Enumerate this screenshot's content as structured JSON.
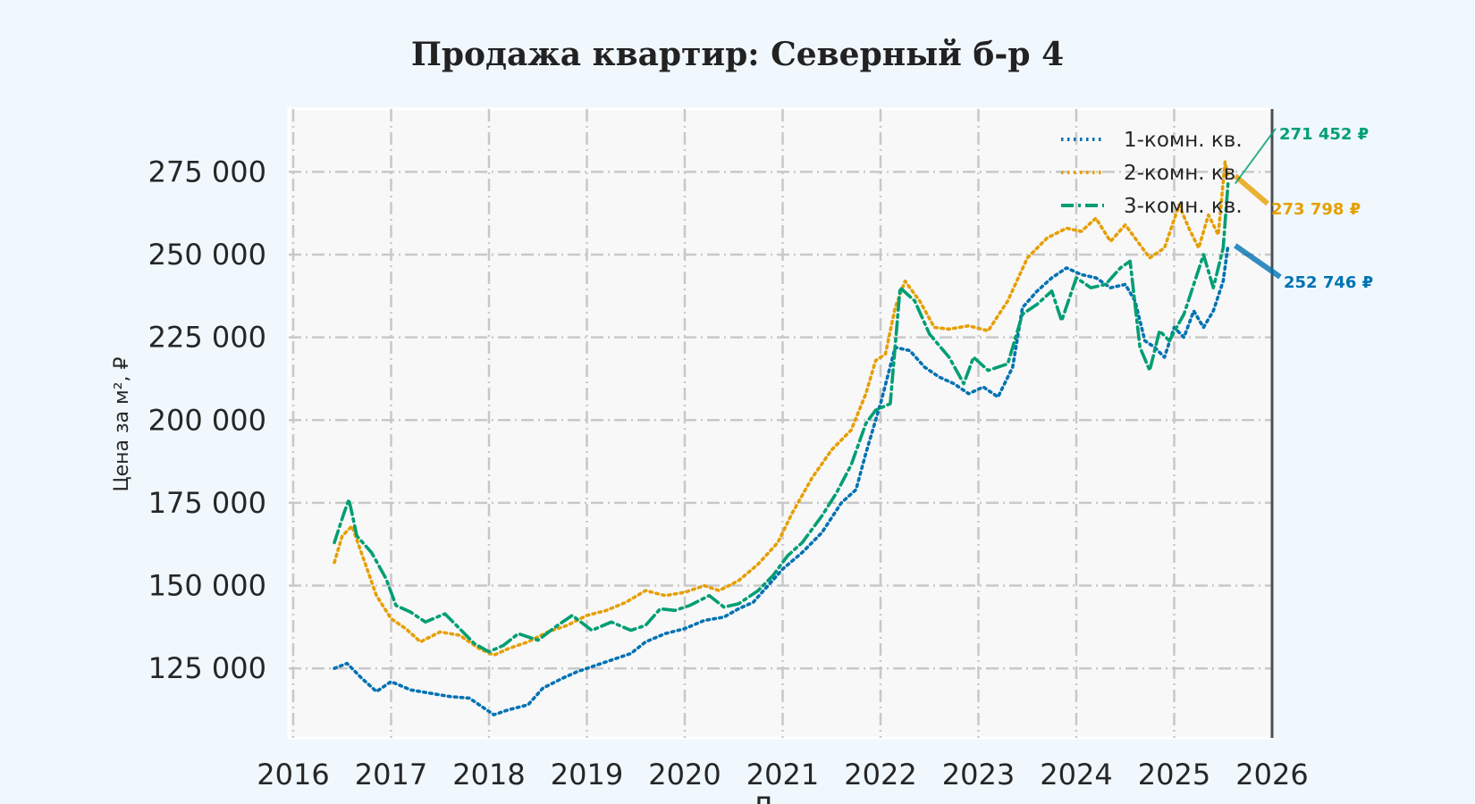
{
  "chart_data": {
    "type": "line",
    "title": "Продажа квартир: Северный б-р 4",
    "xlabel": "Д",
    "ylabel": "Цена за м², ₽",
    "xlim": [
      2016,
      2026
    ],
    "ylim": [
      104000,
      294000
    ],
    "x_ticks": [
      "2016",
      "2017",
      "2018",
      "2019",
      "2020",
      "2021",
      "2022",
      "2023",
      "2024",
      "2025",
      "2026"
    ],
    "y_ticks": [
      {
        "value": 125000,
        "label": "125 000"
      },
      {
        "value": 150000,
        "label": "150 000"
      },
      {
        "value": 175000,
        "label": "175 000"
      },
      {
        "value": 200000,
        "label": "200 000"
      },
      {
        "value": 225000,
        "label": "225 000"
      },
      {
        "value": 250000,
        "label": "250 000"
      },
      {
        "value": 275000,
        "label": "275 000"
      }
    ],
    "grid": true,
    "legend_position": "top-right",
    "series": [
      {
        "name": "1-комн. кв.",
        "color": "#0072b2",
        "dash": "dotted",
        "points": [
          [
            2016.42,
            125000
          ],
          [
            2016.55,
            126500
          ],
          [
            2016.7,
            122000
          ],
          [
            2016.85,
            118000
          ],
          [
            2017.0,
            121000
          ],
          [
            2017.2,
            118500
          ],
          [
            2017.4,
            117500
          ],
          [
            2017.6,
            116500
          ],
          [
            2017.8,
            116000
          ],
          [
            2017.95,
            113000
          ],
          [
            2018.05,
            111000
          ],
          [
            2018.2,
            112500
          ],
          [
            2018.4,
            114000
          ],
          [
            2018.55,
            119000
          ],
          [
            2018.75,
            122000
          ],
          [
            2018.9,
            124000
          ],
          [
            2019.05,
            125500
          ],
          [
            2019.25,
            127500
          ],
          [
            2019.45,
            129500
          ],
          [
            2019.6,
            133000
          ],
          [
            2019.8,
            135500
          ],
          [
            2020.0,
            137000
          ],
          [
            2020.2,
            139500
          ],
          [
            2020.4,
            140500
          ],
          [
            2020.55,
            143000
          ],
          [
            2020.7,
            145000
          ],
          [
            2020.85,
            150000
          ],
          [
            2021.0,
            155000
          ],
          [
            2021.2,
            160000
          ],
          [
            2021.4,
            166000
          ],
          [
            2021.6,
            175000
          ],
          [
            2021.75,
            179000
          ],
          [
            2021.85,
            190000
          ],
          [
            2022.0,
            205000
          ],
          [
            2022.15,
            222000
          ],
          [
            2022.3,
            221000
          ],
          [
            2022.45,
            216000
          ],
          [
            2022.6,
            213000
          ],
          [
            2022.75,
            211000
          ],
          [
            2022.9,
            208000
          ],
          [
            2023.05,
            210000
          ],
          [
            2023.2,
            207000
          ],
          [
            2023.35,
            216000
          ],
          [
            2023.45,
            234000
          ],
          [
            2023.6,
            239000
          ],
          [
            2023.75,
            243000
          ],
          [
            2023.9,
            246000
          ],
          [
            2024.05,
            244000
          ],
          [
            2024.2,
            243000
          ],
          [
            2024.35,
            240000
          ],
          [
            2024.5,
            241000
          ],
          [
            2024.6,
            236000
          ],
          [
            2024.7,
            224000
          ],
          [
            2024.8,
            222000
          ],
          [
            2024.9,
            219000
          ],
          [
            2025.0,
            228000
          ],
          [
            2025.1,
            225000
          ],
          [
            2025.2,
            233000
          ],
          [
            2025.3,
            228000
          ],
          [
            2025.4,
            233000
          ],
          [
            2025.5,
            242000
          ],
          [
            2025.55,
            252746
          ]
        ]
      },
      {
        "name": "2-комн. кв.",
        "color": "#e69f00",
        "dash": "dotted",
        "points": [
          [
            2016.42,
            157000
          ],
          [
            2016.5,
            165000
          ],
          [
            2016.6,
            168000
          ],
          [
            2016.72,
            158000
          ],
          [
            2016.85,
            147000
          ],
          [
            2017.0,
            140000
          ],
          [
            2017.15,
            137000
          ],
          [
            2017.3,
            133000
          ],
          [
            2017.5,
            136000
          ],
          [
            2017.7,
            135000
          ],
          [
            2017.9,
            131000
          ],
          [
            2018.05,
            129000
          ],
          [
            2018.2,
            131000
          ],
          [
            2018.4,
            133000
          ],
          [
            2018.6,
            136000
          ],
          [
            2018.8,
            138000
          ],
          [
            2019.0,
            141000
          ],
          [
            2019.2,
            142500
          ],
          [
            2019.4,
            145000
          ],
          [
            2019.6,
            148500
          ],
          [
            2019.8,
            147000
          ],
          [
            2020.0,
            148000
          ],
          [
            2020.2,
            150000
          ],
          [
            2020.35,
            148500
          ],
          [
            2020.55,
            151500
          ],
          [
            2020.75,
            156500
          ],
          [
            2020.95,
            163000
          ],
          [
            2021.1,
            172000
          ],
          [
            2021.3,
            182500
          ],
          [
            2021.5,
            191000
          ],
          [
            2021.7,
            197000
          ],
          [
            2021.85,
            208000
          ],
          [
            2021.95,
            218000
          ],
          [
            2022.05,
            220000
          ],
          [
            2022.15,
            234000
          ],
          [
            2022.25,
            242000
          ],
          [
            2022.4,
            236000
          ],
          [
            2022.55,
            228000
          ],
          [
            2022.7,
            227500
          ],
          [
            2022.9,
            228500
          ],
          [
            2023.1,
            227000
          ],
          [
            2023.3,
            236000
          ],
          [
            2023.5,
            249000
          ],
          [
            2023.7,
            255000
          ],
          [
            2023.9,
            258000
          ],
          [
            2024.05,
            257000
          ],
          [
            2024.2,
            261000
          ],
          [
            2024.35,
            254000
          ],
          [
            2024.5,
            259000
          ],
          [
            2024.6,
            255000
          ],
          [
            2024.75,
            249000
          ],
          [
            2024.9,
            252000
          ],
          [
            2025.05,
            265000
          ],
          [
            2025.15,
            258000
          ],
          [
            2025.25,
            252000
          ],
          [
            2025.35,
            262000
          ],
          [
            2025.45,
            256000
          ],
          [
            2025.52,
            278000
          ],
          [
            2025.55,
            273798
          ]
        ]
      },
      {
        "name": "3-комн. кв.",
        "color": "#009e73",
        "dash": "dashdot",
        "points": [
          [
            2016.42,
            163000
          ],
          [
            2016.52,
            172000
          ],
          [
            2016.57,
            176000
          ],
          [
            2016.65,
            165000
          ],
          [
            2016.8,
            160000
          ],
          [
            2016.95,
            152000
          ],
          [
            2017.05,
            144000
          ],
          [
            2017.2,
            142000
          ],
          [
            2017.35,
            139000
          ],
          [
            2017.55,
            141500
          ],
          [
            2017.7,
            137000
          ],
          [
            2017.85,
            132500
          ],
          [
            2018.0,
            130000
          ],
          [
            2018.15,
            132000
          ],
          [
            2018.3,
            135500
          ],
          [
            2018.5,
            133500
          ],
          [
            2018.7,
            138000
          ],
          [
            2018.85,
            141000
          ],
          [
            2019.05,
            136500
          ],
          [
            2019.25,
            139000
          ],
          [
            2019.45,
            136500
          ],
          [
            2019.6,
            138000
          ],
          [
            2019.75,
            143000
          ],
          [
            2019.9,
            142500
          ],
          [
            2020.05,
            144000
          ],
          [
            2020.25,
            147000
          ],
          [
            2020.4,
            143500
          ],
          [
            2020.55,
            144500
          ],
          [
            2020.75,
            148500
          ],
          [
            2020.9,
            153000
          ],
          [
            2021.05,
            159000
          ],
          [
            2021.2,
            163000
          ],
          [
            2021.4,
            171000
          ],
          [
            2021.55,
            178000
          ],
          [
            2021.7,
            186500
          ],
          [
            2021.85,
            199000
          ],
          [
            2021.95,
            203000
          ],
          [
            2022.1,
            205000
          ],
          [
            2022.2,
            240000
          ],
          [
            2022.35,
            236000
          ],
          [
            2022.5,
            226000
          ],
          [
            2022.7,
            219000
          ],
          [
            2022.85,
            211000
          ],
          [
            2022.95,
            219000
          ],
          [
            2023.1,
            215000
          ],
          [
            2023.3,
            217000
          ],
          [
            2023.45,
            232000
          ],
          [
            2023.6,
            235000
          ],
          [
            2023.75,
            239000
          ],
          [
            2023.85,
            230000
          ],
          [
            2024.0,
            243000
          ],
          [
            2024.15,
            240000
          ],
          [
            2024.3,
            241000
          ],
          [
            2024.45,
            246000
          ],
          [
            2024.55,
            248000
          ],
          [
            2024.65,
            222000
          ],
          [
            2024.75,
            215000
          ],
          [
            2024.85,
            227000
          ],
          [
            2024.95,
            224000
          ],
          [
            2025.1,
            232000
          ],
          [
            2025.2,
            241000
          ],
          [
            2025.3,
            250000
          ],
          [
            2025.4,
            240000
          ],
          [
            2025.5,
            252000
          ],
          [
            2025.55,
            271452
          ]
        ]
      }
    ],
    "annotations": [
      {
        "series": 0,
        "text": "252 746 ₽",
        "value": 252746,
        "color": "#0072b2"
      },
      {
        "series": 1,
        "text": "273 798 ₽",
        "value": 273798,
        "color": "#e69f00"
      },
      {
        "series": 2,
        "text": "271 452 ₽",
        "value": 271452,
        "color": "#009e73"
      }
    ]
  }
}
